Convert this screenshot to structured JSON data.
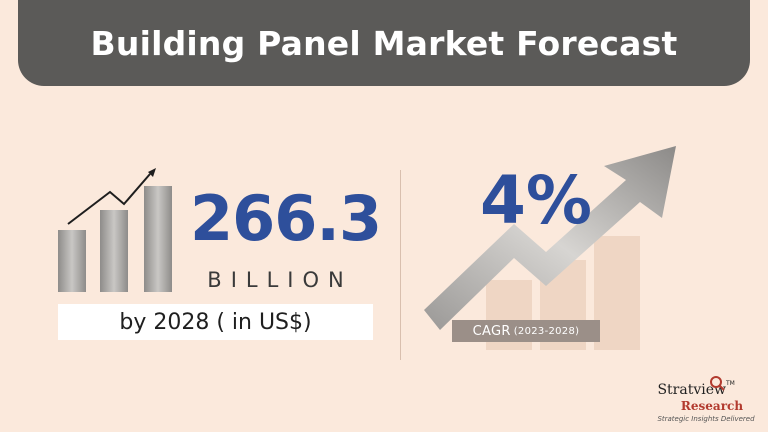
{
  "title": "Building Panel Market Forecast",
  "market_size": {
    "value": "266.3",
    "unit": "BILLION",
    "note": "by 2028 ( in US$)"
  },
  "cagr": {
    "value": "4%",
    "label": "CAGR",
    "period": "(2023-2028)"
  },
  "brand": {
    "name": "Stratview",
    "tm": "TM",
    "sub": "Research",
    "tagline": "Strategic Insights Delivered"
  },
  "colors": {
    "background": "#fbe9dc",
    "title_bar": "#5b5a58",
    "accent_blue": "#2e4f9b",
    "label_bg": "#9b8f88",
    "brand_red": "#b23a2e"
  },
  "icons": {
    "left": "bar-chart-growth-icon",
    "right": "growth-arrow-icon"
  }
}
